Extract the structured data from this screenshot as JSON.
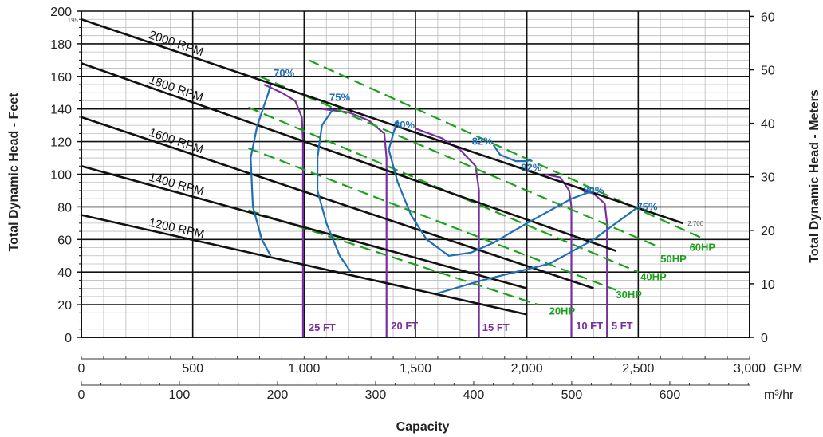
{
  "chart_data": {
    "type": "line",
    "title": "",
    "xlabel": "Capacity",
    "ylabel_left": "Total Dynamic Head - Feet",
    "ylabel_right": "Total Dynamic Head - Meters",
    "x_gpm": {
      "range": [
        0,
        3000
      ],
      "ticks": [
        0,
        500,
        1000,
        1500,
        2000,
        2500,
        3000
      ],
      "tick_labels": [
        "0",
        "500",
        "1,000",
        "1,500",
        "2,000",
        "2,500",
        "3,000"
      ],
      "unit": "GPM"
    },
    "x_m3hr": {
      "ticks": [
        0,
        100,
        200,
        300,
        400,
        500,
        600
      ],
      "tick_labels": [
        "0",
        "100",
        "200",
        "300",
        "400",
        "500",
        "600"
      ],
      "unit": "m³/hr"
    },
    "y_feet": {
      "range": [
        0,
        200
      ],
      "ticks": [
        0,
        20,
        40,
        60,
        80,
        100,
        120,
        140,
        160,
        180,
        200
      ]
    },
    "y_meters": {
      "ticks": [
        0,
        10,
        20,
        30,
        40,
        50,
        60
      ]
    },
    "grid": true,
    "annotations": {
      "start_head": "195",
      "end_flow": "2,700"
    },
    "colors": {
      "rpm": "#111111",
      "efficiency": "#1f6eb5",
      "hp": "#1aa31a",
      "npsh": "#7a2fa0",
      "grid": "#111111"
    },
    "rpm_curves": [
      {
        "name": "2000 RPM",
        "points": [
          [
            0,
            195
          ],
          [
            2700,
            70
          ]
        ]
      },
      {
        "name": "1800 RPM",
        "points": [
          [
            0,
            168
          ],
          [
            2400,
            53
          ]
        ]
      },
      {
        "name": "1600 RPM",
        "points": [
          [
            0,
            135
          ],
          [
            2300,
            30
          ]
        ]
      },
      {
        "name": "1400 RPM",
        "points": [
          [
            0,
            105
          ],
          [
            2000,
            30
          ]
        ]
      },
      {
        "name": "1200 RPM",
        "points": [
          [
            0,
            75
          ],
          [
            2000,
            14
          ]
        ]
      }
    ],
    "efficiency_curves": [
      {
        "name": "70%",
        "points": [
          [
            850,
            155
          ],
          [
            840,
            150
          ],
          [
            790,
            130
          ],
          [
            760,
            110
          ],
          [
            770,
            80
          ],
          [
            810,
            60
          ],
          [
            850,
            50
          ]
        ]
      },
      {
        "name": "75%",
        "points": [
          [
            1130,
            140
          ],
          [
            1080,
            130
          ],
          [
            1060,
            110
          ],
          [
            1060,
            90
          ],
          [
            1100,
            70
          ],
          [
            1160,
            50
          ],
          [
            1210,
            40
          ]
        ]
      },
      {
        "name": "80%",
        "points": [
          [
            1420,
            133
          ],
          [
            1400,
            125
          ],
          [
            1380,
            115
          ],
          [
            1420,
            95
          ],
          [
            1480,
            75
          ],
          [
            1550,
            60
          ],
          [
            1650,
            50
          ],
          [
            1750,
            52
          ],
          [
            1850,
            58
          ],
          [
            2000,
            70
          ],
          [
            2200,
            85
          ],
          [
            2300,
            90
          ]
        ]
      },
      {
        "name": "82%",
        "points": [
          [
            1850,
            118
          ],
          [
            1880,
            112
          ],
          [
            1950,
            108
          ],
          [
            2000,
            108
          ],
          [
            2020,
            109
          ]
        ]
      },
      {
        "name": "75%",
        "points": [
          [
            1600,
            27
          ],
          [
            1800,
            35
          ],
          [
            2100,
            45
          ],
          [
            2300,
            60
          ],
          [
            2500,
            80
          ]
        ]
      }
    ],
    "efficiency_labels": [
      {
        "text": "70%",
        "x": 910,
        "y": 160
      },
      {
        "text": "75%",
        "x": 1160,
        "y": 145
      },
      {
        "text": "80%",
        "x": 1450,
        "y": 128
      },
      {
        "text": "82%",
        "x": 1800,
        "y": 118
      },
      {
        "text": "82%",
        "x": 2020,
        "y": 102
      },
      {
        "text": "80%",
        "x": 2300,
        "y": 88
      },
      {
        "text": "75%",
        "x": 2540,
        "y": 78
      }
    ],
    "hp_curves": [
      {
        "name": "60HP",
        "points": [
          [
            1020,
            170
          ],
          [
            2800,
            60
          ]
        ]
      },
      {
        "name": "50HP",
        "points": [
          [
            800,
            160
          ],
          [
            2600,
            55
          ]
        ]
      },
      {
        "name": "40HP",
        "points": [
          [
            750,
            141
          ],
          [
            2500,
            40
          ]
        ]
      },
      {
        "name": "30HP",
        "points": [
          [
            750,
            116
          ],
          [
            2400,
            29
          ]
        ]
      },
      {
        "name": "20HP",
        "points": [
          [
            750,
            78
          ],
          [
            2050,
            20
          ]
        ]
      }
    ],
    "hp_labels": [
      {
        "text": "60HP",
        "x": 2730,
        "y": 53
      },
      {
        "text": "50HP",
        "x": 2600,
        "y": 46
      },
      {
        "text": "40HP",
        "x": 2510,
        "y": 35
      },
      {
        "text": "30HP",
        "x": 2400,
        "y": 24
      },
      {
        "text": "20HP",
        "x": 2100,
        "y": 14
      }
    ],
    "npsh_curves": [
      {
        "name": "25 FT",
        "points": [
          [
            820,
            155
          ],
          [
            900,
            150
          ],
          [
            960,
            145
          ],
          [
            990,
            135
          ],
          [
            995,
            120
          ],
          [
            995,
            0
          ]
        ]
      },
      {
        "name": "20 FT",
        "points": [
          [
            1080,
            140
          ],
          [
            1200,
            138
          ],
          [
            1290,
            133
          ],
          [
            1360,
            125
          ],
          [
            1370,
            110
          ],
          [
            1370,
            0
          ]
        ]
      },
      {
        "name": "15 FT",
        "points": [
          [
            1500,
            128
          ],
          [
            1620,
            122
          ],
          [
            1700,
            115
          ],
          [
            1770,
            105
          ],
          [
            1785,
            90
          ],
          [
            1785,
            0
          ]
        ]
      },
      {
        "name": "10 FT",
        "points": [
          [
            2080,
            100
          ],
          [
            2150,
            98
          ],
          [
            2190,
            90
          ],
          [
            2200,
            80
          ],
          [
            2200,
            0
          ]
        ]
      },
      {
        "name": "5 FT",
        "points": [
          [
            2250,
            90
          ],
          [
            2300,
            88
          ],
          [
            2350,
            82
          ],
          [
            2360,
            70
          ],
          [
            2360,
            0
          ]
        ]
      }
    ],
    "npsh_labels": [
      {
        "text": "25 FT",
        "x": 1020,
        "y": 4
      },
      {
        "text": "20 FT",
        "x": 1390,
        "y": 5
      },
      {
        "text": "15 FT",
        "x": 1800,
        "y": 4
      },
      {
        "text": "10 FT",
        "x": 2220,
        "y": 5
      },
      {
        "text": "5 FT",
        "x": 2380,
        "y": 5
      }
    ]
  }
}
